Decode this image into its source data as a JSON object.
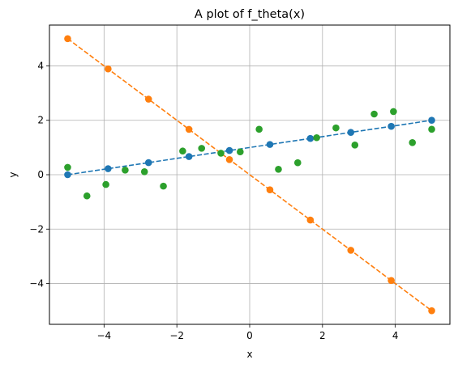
{
  "chart_data": {
    "type": "scatter",
    "title": "A plot of f_theta(x)",
    "xlabel": "x",
    "ylabel": "y",
    "xlim": [
      -5.5,
      5.5
    ],
    "ylim": [
      -5.5,
      5.5
    ],
    "xticks": [
      -4,
      -2,
      0,
      2,
      4
    ],
    "yticks": [
      -4,
      -2,
      0,
      2,
      4
    ],
    "grid": true,
    "colors": {
      "blue": "#1f77b4",
      "orange": "#ff7f0e",
      "green": "#2ca02c",
      "grid": "#b0b0b0"
    },
    "series": [
      {
        "style": "dashed-line-markers",
        "color": "#1f77b4",
        "x": [
          -5,
          -3.889,
          -2.778,
          -1.667,
          -0.556,
          0.556,
          1.667,
          2.778,
          3.889,
          5
        ],
        "y": [
          0,
          0.222,
          0.444,
          0.667,
          0.889,
          1.111,
          1.333,
          1.556,
          1.778,
          2
        ]
      },
      {
        "style": "dashed-line-markers",
        "color": "#ff7f0e",
        "x": [
          -5,
          -3.889,
          -2.778,
          -1.667,
          -0.556,
          0.556,
          1.667,
          2.778,
          3.889,
          5
        ],
        "y": [
          5,
          3.889,
          2.778,
          1.667,
          0.556,
          -0.556,
          -1.667,
          -2.778,
          -3.889,
          -5
        ]
      },
      {
        "style": "markers",
        "color": "#2ca02c",
        "x": [
          -5.0,
          -4.47,
          -3.95,
          -3.42,
          -2.89,
          -2.37,
          -1.84,
          -1.32,
          -0.79,
          -0.26,
          0.26,
          0.79,
          1.32,
          1.84,
          2.37,
          2.89,
          3.42,
          3.95,
          4.47,
          5.0
        ],
        "y": [
          0.27,
          -0.78,
          -0.36,
          0.17,
          0.11,
          -0.42,
          0.87,
          0.97,
          0.79,
          0.84,
          1.67,
          0.2,
          0.44,
          1.36,
          1.72,
          1.09,
          2.23,
          2.32,
          1.18,
          1.67
        ]
      }
    ]
  }
}
